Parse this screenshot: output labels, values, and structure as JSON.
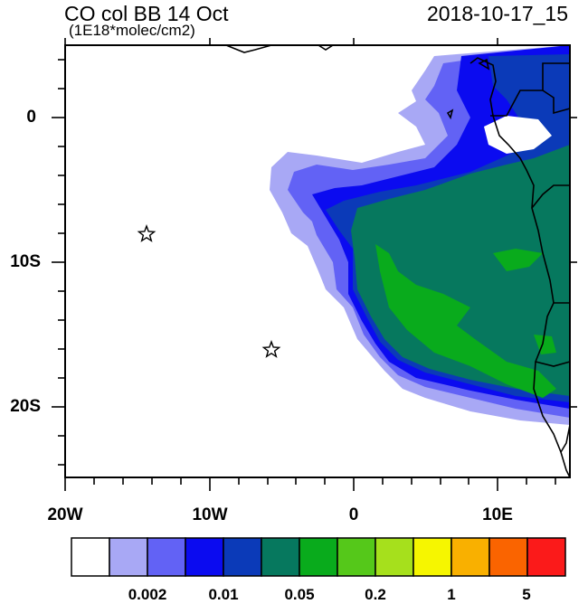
{
  "header": {
    "title": "CO col BB 14 Oct",
    "units": "(1E18*molec/cm2)",
    "timestamp": "2018-10-17_15"
  },
  "map": {
    "x_axis_labels": [
      "20W",
      "10W",
      "0",
      "10E"
    ],
    "y_axis_labels": [
      "0",
      "10S",
      "20S"
    ],
    "lon_range": [
      -20,
      15
    ],
    "lat_range": [
      -25,
      5
    ],
    "markers": [
      {
        "name": "star-marker-1",
        "lon": -14.3,
        "lat": -8.0
      },
      {
        "name": "star-marker-2",
        "lon": -5.8,
        "lat": -16.0
      }
    ]
  },
  "colorbar": {
    "colors": [
      "#ffffff",
      "#a8a8f5",
      "#6262f5",
      "#0b0bf0",
      "#0b3ab8",
      "#06785e",
      "#09ab1c",
      "#55c81a",
      "#a6e01c",
      "#f6f600",
      "#f9b000",
      "#fa6400",
      "#fb1a1a"
    ],
    "tick_labels": [
      "0.002",
      "0.01",
      "0.05",
      "0.2",
      "1",
      "5"
    ]
  }
}
